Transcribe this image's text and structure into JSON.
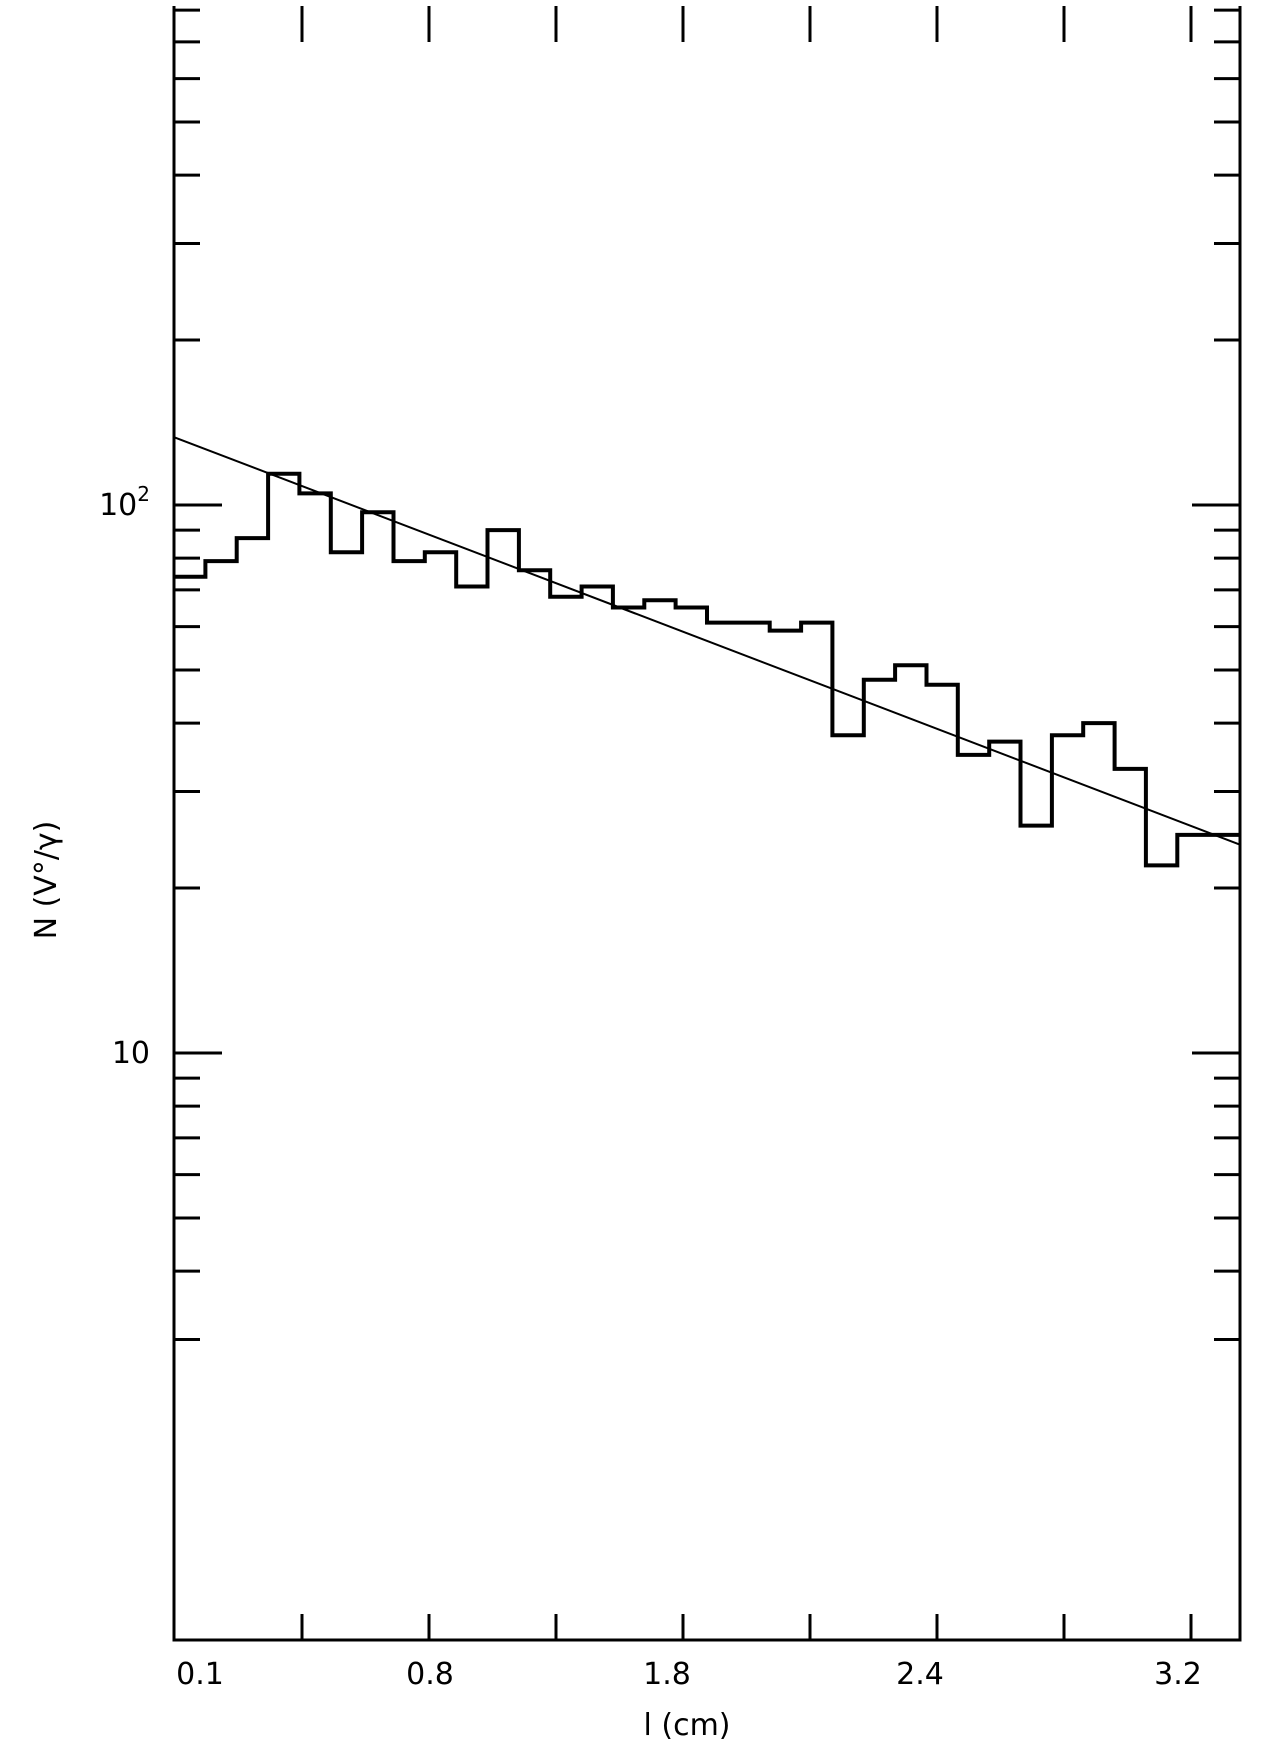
{
  "chart_data": {
    "type": "bar",
    "subtype": "histogram-with-fit",
    "xlabel": "l (cm)",
    "ylabel": "N (V°/γ)",
    "x_tick_labels": [
      "0.1",
      "0.8",
      "1.8",
      "2.4",
      "3.2"
    ],
    "y_tick_labels": [
      {
        "value": 10,
        "base": "10",
        "exp": ""
      },
      {
        "value": 100,
        "base": "10",
        "exp": "2"
      }
    ],
    "x_tick_count": 9,
    "y_scale": "log",
    "y_range": [
      2.6,
      1000
    ],
    "grid": false,
    "series": [
      {
        "type": "histogram",
        "values": [
          74,
          79,
          87,
          114,
          105,
          82,
          97,
          79,
          82,
          71,
          90,
          76,
          68,
          71,
          65,
          67,
          65,
          61,
          61,
          59,
          61,
          38,
          48,
          51,
          47,
          35,
          37,
          26,
          38,
          40,
          33,
          22,
          25,
          25
        ]
      },
      {
        "type": "line",
        "description": "exponential fit",
        "start": 133,
        "end": 24
      }
    ]
  }
}
